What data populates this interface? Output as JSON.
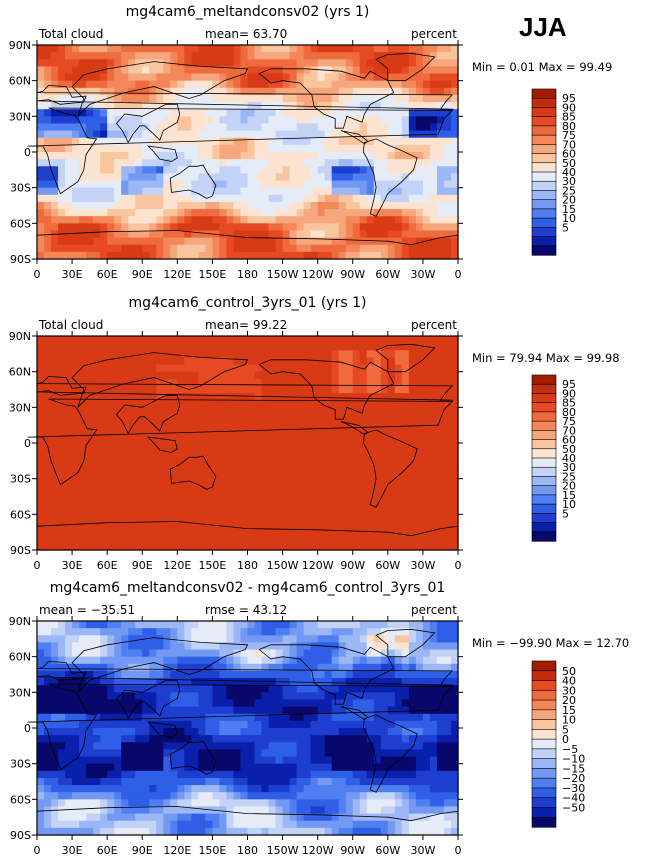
{
  "season": "JJA",
  "colors": {
    "abs_scale": [
      "#08086b",
      "#0a1faa",
      "#1e3ecf",
      "#2f5fe6",
      "#4f7ff0",
      "#7499f2",
      "#9cb7f5",
      "#c3d3f7",
      "#e6ecf7",
      "#fbe3cf",
      "#f9c59e",
      "#f7a77d",
      "#f48759",
      "#ef6a3c",
      "#e54a22",
      "#d93a16",
      "#c22d0b",
      "#a31d00"
    ],
    "diff_scale": [
      "#08086b",
      "#0a1faa",
      "#1e3ecf",
      "#2f5fe6",
      "#4f7ff0",
      "#7499f2",
      "#9cb7f5",
      "#c3d3f7",
      "#e6ecf7",
      "#fbe3cf",
      "#f9c59e",
      "#f7a77d",
      "#f48759",
      "#ef6a3c",
      "#e54a22",
      "#c22d0b",
      "#a31d00"
    ]
  },
  "chart_data": [
    {
      "type": "heatmap",
      "title": "mg4cam6_meltandconsv02 (yrs 1)",
      "left_label": "Total cloud",
      "center_label": "mean=  63.70",
      "right_label": "percent",
      "min_max_label": "Min =    0.01 Max =  99.49",
      "x_ticks": [
        "0",
        "30E",
        "60E",
        "90E",
        "120E",
        "150E",
        "180",
        "150W",
        "120W",
        "90W",
        "60W",
        "30W",
        "0"
      ],
      "y_ticks": [
        "90N",
        "60N",
        "30N",
        "0",
        "30S",
        "60S",
        "90S"
      ],
      "xlim": [
        0,
        360
      ],
      "ylim": [
        -90,
        90
      ],
      "colorbar_levels": [
        "95",
        "90",
        "85",
        "80",
        "75",
        "70",
        "60",
        "50",
        "40",
        "30",
        "25",
        "20",
        "15",
        "10",
        "5"
      ],
      "mean": 63.7,
      "min": 0.01,
      "max": 99.49
    },
    {
      "type": "heatmap",
      "title": "mg4cam6_control_3yrs_01 (yrs 1)",
      "left_label": "Total cloud",
      "center_label": "mean=  99.22",
      "right_label": "percent",
      "min_max_label": "Min =  79.94 Max =  99.98",
      "x_ticks": [
        "0",
        "30E",
        "60E",
        "90E",
        "120E",
        "150E",
        "180",
        "150W",
        "120W",
        "90W",
        "60W",
        "30W",
        "0"
      ],
      "y_ticks": [
        "90N",
        "60N",
        "30N",
        "0",
        "30S",
        "60S",
        "90S"
      ],
      "xlim": [
        0,
        360
      ],
      "ylim": [
        -90,
        90
      ],
      "colorbar_levels": [
        "95",
        "90",
        "85",
        "80",
        "75",
        "70",
        "60",
        "50",
        "40",
        "30",
        "25",
        "20",
        "15",
        "10",
        "5"
      ],
      "mean": 99.22,
      "min": 79.94,
      "max": 99.98
    },
    {
      "type": "heatmap",
      "title": "mg4cam6_meltandconsv02 - mg4cam6_control_3yrs_01",
      "left_label": "mean = −35.51",
      "center_label": "rmse =  43.12",
      "right_label": "percent",
      "min_max_label": "Min = −99.90 Max =  12.70",
      "x_ticks": [
        "0",
        "30E",
        "60E",
        "90E",
        "120E",
        "150E",
        "180",
        "150W",
        "120W",
        "90W",
        "60W",
        "30W",
        "0"
      ],
      "y_ticks": [
        "90N",
        "60N",
        "30N",
        "0",
        "30S",
        "60S",
        "90S"
      ],
      "xlim": [
        0,
        360
      ],
      "ylim": [
        -90,
        90
      ],
      "colorbar_levels": [
        "50",
        "40",
        "30",
        "20",
        "15",
        "10",
        "5",
        "0",
        "−5",
        "−10",
        "−15",
        "−20",
        "−30",
        "−40",
        "−50"
      ],
      "mean": -35.51,
      "rmse": 43.12,
      "min": -99.9,
      "max": 12.7
    }
  ]
}
